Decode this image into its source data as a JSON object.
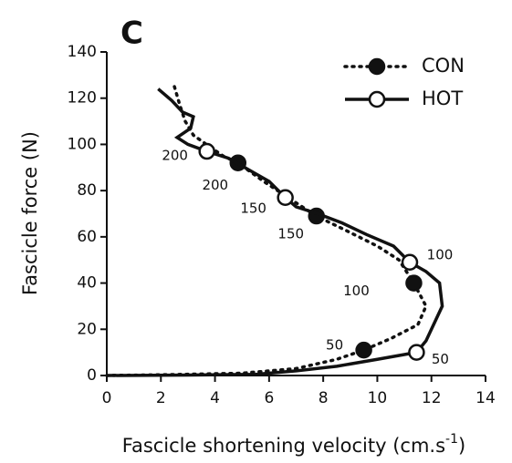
{
  "chart_data": {
    "type": "line",
    "panel_label": "C",
    "y_label": "Fascicle force (N)",
    "x_label": {
      "text": "Fascicle shortening velocity (cm.s",
      "sup": "-1",
      "end": ")"
    },
    "xlim": [
      0,
      14
    ],
    "xticks": [
      0,
      2,
      4,
      6,
      8,
      10,
      12,
      14
    ],
    "ylim": [
      0,
      140
    ],
    "yticks": [
      0,
      20,
      40,
      60,
      80,
      100,
      120,
      140
    ],
    "legend": "top-right",
    "series": [
      {
        "name": "CON",
        "color": "#111111",
        "dash": "dotted",
        "marker_fill": "#111111",
        "x": [
          2.5,
          2.7,
          2.9,
          3.2,
          3.8,
          4.3,
          4.85,
          5.8,
          6.7,
          7.75,
          8.8,
          10.0,
          10.8,
          11.35,
          11.8,
          11.5,
          10.5,
          9.5,
          8.5,
          7,
          5,
          2,
          0
        ],
        "y": [
          125,
          117,
          110,
          104,
          99,
          95,
          92,
          84,
          77,
          69,
          63,
          56,
          50,
          40,
          30,
          22,
          16,
          11,
          7,
          3,
          1,
          0.3,
          0
        ],
        "markers": {
          "x": [
            4.85,
            7.75,
            11.35,
            9.5
          ],
          "y": [
            92,
            69,
            40,
            11
          ],
          "labels": [
            200,
            150,
            100,
            50
          ]
        }
      },
      {
        "name": "HOT",
        "color": "#111111",
        "dash": "solid",
        "marker_fill": "#ffffff",
        "x": [
          1.9,
          2.4,
          2.8,
          3.2,
          3.1,
          2.6,
          3.0,
          3.7,
          4.5,
          5.4,
          6.0,
          6.6,
          7.0,
          7.8,
          8.7,
          9.6,
          10.6,
          11.2,
          11.8,
          12.3,
          12.4,
          12.0,
          11.8,
          11.45,
          10.0,
          8.5,
          7.0,
          5.5,
          3,
          0
        ],
        "y": [
          124,
          119,
          114,
          112,
          107,
          103,
          100,
          97,
          94,
          88,
          84,
          77,
          73,
          70,
          66,
          61,
          56,
          49,
          45,
          40,
          30,
          20,
          15,
          10,
          7,
          4,
          2,
          0.5,
          0.2,
          0
        ],
        "markers": {
          "x": [
            3.7,
            6.6,
            11.2,
            11.45
          ],
          "y": [
            97,
            77,
            49,
            10
          ],
          "labels": [
            200,
            150,
            100,
            50
          ]
        }
      }
    ]
  }
}
